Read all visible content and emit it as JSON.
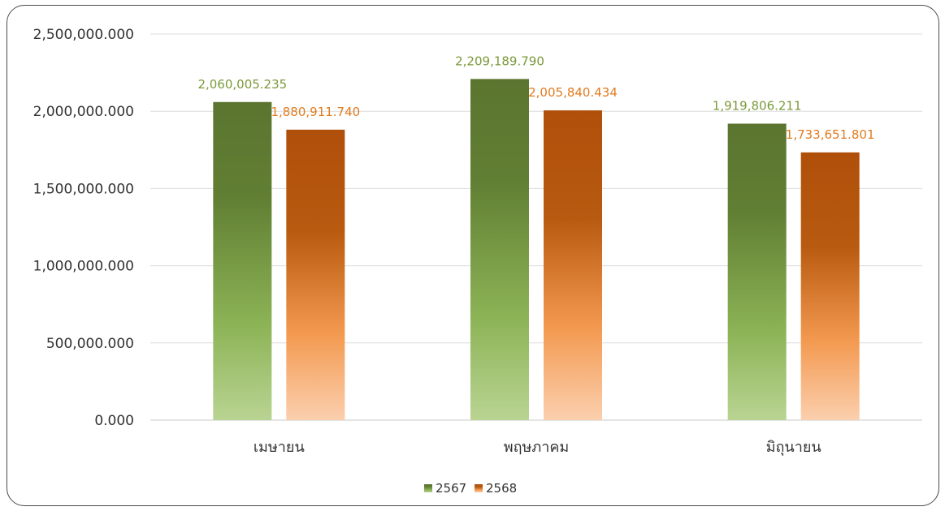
{
  "chart_data": {
    "type": "bar",
    "title": "",
    "xlabel": "",
    "ylabel": "",
    "categories": [
      "เมษายน",
      "พฤษภาคม",
      "มิถุนายน"
    ],
    "ylim": [
      0,
      2500000
    ],
    "yticks": [
      0,
      500000,
      1000000,
      1500000,
      2000000,
      2500000
    ],
    "ytick_labels": [
      "0.000",
      "500,000.000",
      "1,000,000.000",
      "1,500,000.000",
      "2,000,000.000",
      "2,500,000.000"
    ],
    "grid": true,
    "legend_position": "bottom",
    "series": [
      {
        "name": "2567",
        "values": [
          2060005.235,
          2209189.79,
          1919806.211
        ],
        "labels": [
          "2,060,005.235",
          "2,209,189.790",
          "1,919,806.211"
        ],
        "color": "#5f7b30",
        "label_color": "#7a9a3a"
      },
      {
        "name": "2568",
        "values": [
          1880911.74,
          2005840.434,
          1733651.801
        ],
        "labels": [
          "1,880,911.740",
          "2,005,840.434",
          "1,733,651.801"
        ],
        "color": "#b3520b",
        "label_color": "#e07b1f"
      }
    ]
  }
}
